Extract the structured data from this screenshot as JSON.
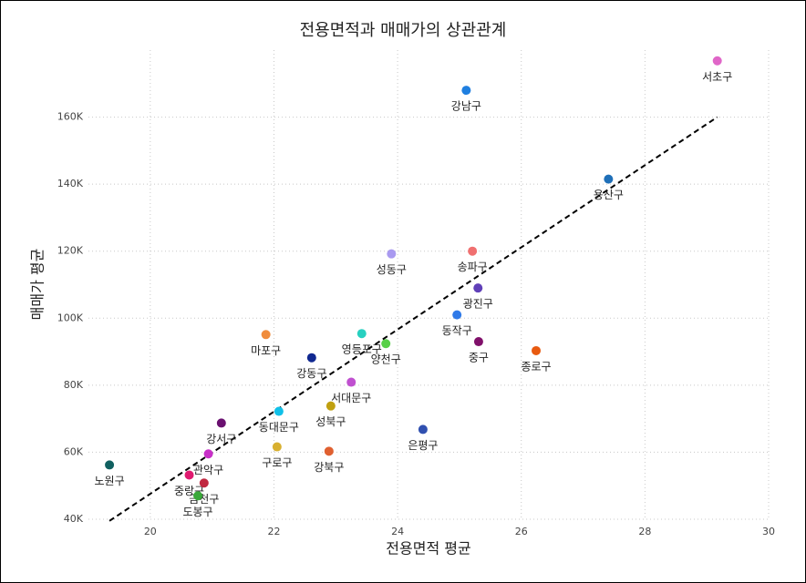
{
  "chart_data": {
    "type": "scatter",
    "title": "전용면적과 매매가의 상관관계",
    "x_label": "전용면적 평균",
    "y_label": "매매가 평균",
    "labels": [
      "서초구",
      "강남구",
      "용산구",
      "성동구",
      "송파구",
      "광진구",
      "동작구",
      "중구",
      "종로구",
      "마포구",
      "영등포구",
      "양천구",
      "강동구",
      "서대문구",
      "성북구",
      "은평구",
      "동대문구",
      "강서구",
      "구로구",
      "강북구",
      "관악구",
      "노원구",
      "중랑구",
      "금천구",
      "도봉구"
    ],
    "x": [
      29.17,
      25.11,
      27.41,
      23.9,
      25.21,
      25.3,
      24.96,
      25.31,
      26.24,
      21.87,
      23.42,
      23.81,
      22.61,
      23.25,
      22.92,
      24.41,
      22.08,
      21.15,
      22.05,
      22.89,
      20.94,
      19.34,
      20.63,
      20.87,
      20.77
    ],
    "values": [
      176800,
      168000,
      141500,
      119200,
      120000,
      109000,
      101000,
      93000,
      90300,
      95100,
      95400,
      92400,
      88200,
      80900,
      73800,
      66800,
      72200,
      68700,
      61600,
      60300,
      59500,
      56200,
      53200,
      50800,
      47000
    ],
    "colors": [
      "#e066c8",
      "#1f7fe0",
      "#1f6fb8",
      "#a99af0",
      "#f07070",
      "#6040b8",
      "#2f7ae8",
      "#80106a",
      "#e85a10",
      "#f08c3c",
      "#28d0c0",
      "#58d048",
      "#102890",
      "#c050d0",
      "#c0a010",
      "#3050b0",
      "#10c0e8",
      "#6a1070",
      "#d8b030",
      "#e06030",
      "#c830c8",
      "#106060",
      "#e01a70",
      "#c02840",
      "#38a838"
    ],
    "trendline": {
      "x": [
        19.34,
        29.17
      ],
      "y": [
        39500,
        160000
      ]
    },
    "xlim": [
      19,
      30
    ],
    "ylim": [
      40000,
      180000
    ],
    "xticks": [
      20,
      22,
      24,
      26,
      28,
      30
    ],
    "yticks": [
      {
        "value": 40000,
        "label": "40K"
      },
      {
        "value": 60000,
        "label": "60K"
      },
      {
        "value": 80000,
        "label": "80K"
      },
      {
        "value": 100000,
        "label": "100K"
      },
      {
        "value": 120000,
        "label": "120K"
      },
      {
        "value": 140000,
        "label": "140K"
      },
      {
        "value": 160000,
        "label": "160K"
      }
    ],
    "grid": true
  }
}
